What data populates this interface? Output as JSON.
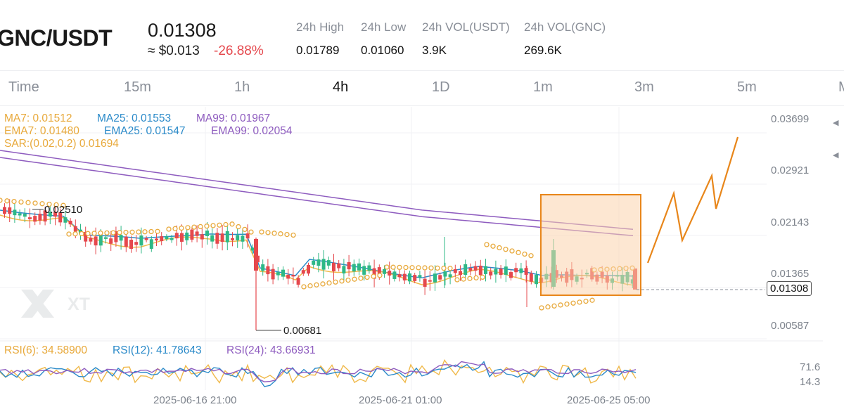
{
  "header": {
    "pair": "GNC/USDT",
    "last_price": "0.01308",
    "usd_price": "≈ $0.013",
    "change": "-26.88%",
    "stats": [
      {
        "label": "24h High",
        "value": "0.01789"
      },
      {
        "label": "24h Low",
        "value": "0.01060"
      },
      {
        "label": "24h VOL(USDT)",
        "value": "3.9K"
      },
      {
        "label": "24h VOL(GNC)",
        "value": "269.6K"
      }
    ]
  },
  "timeframes": [
    "Time",
    "15m",
    "1h",
    "4h",
    "1D",
    "1m",
    "3m",
    "5m",
    "M"
  ],
  "active_timeframe": "4h",
  "indicators": {
    "ma7": "MA7: 0.01512",
    "ma25": "MA25: 0.01553",
    "ma99": "MA99: 0.01967",
    "ema7": "EMA7: 0.01480",
    "ema25": "EMA25: 0.01547",
    "ema99": "EMA99: 0.02054",
    "sar": "SAR:(0.02,0.2)  0.01694"
  },
  "price_axis": [
    "0.03699",
    "0.02921",
    "0.02143",
    "0.01365",
    "0.00587"
  ],
  "current_price_tag": "0.01308",
  "annotations": {
    "high_label": "0.02510",
    "low_label": "0.00681"
  },
  "watermark": "XT",
  "rsi": {
    "rsi6": "RSI(6): 34.58900",
    "rsi12": "RSI(12): 41.78643",
    "rsi24": "RSI(24): 43.66931",
    "axis": [
      "71.6",
      "14.3"
    ]
  },
  "time_axis": [
    "2025-06-16 21:00",
    "2025-06-21 01:00",
    "2025-06-25 05:00"
  ],
  "colors": {
    "up": "#2eb886",
    "down": "#e5484d",
    "ma7": "#f0b94a",
    "ma25": "#2a8ac9",
    "ma99": "#8e5cbf",
    "annotation": "#e8861a",
    "annotation_fill": "#fbd3ad"
  }
}
